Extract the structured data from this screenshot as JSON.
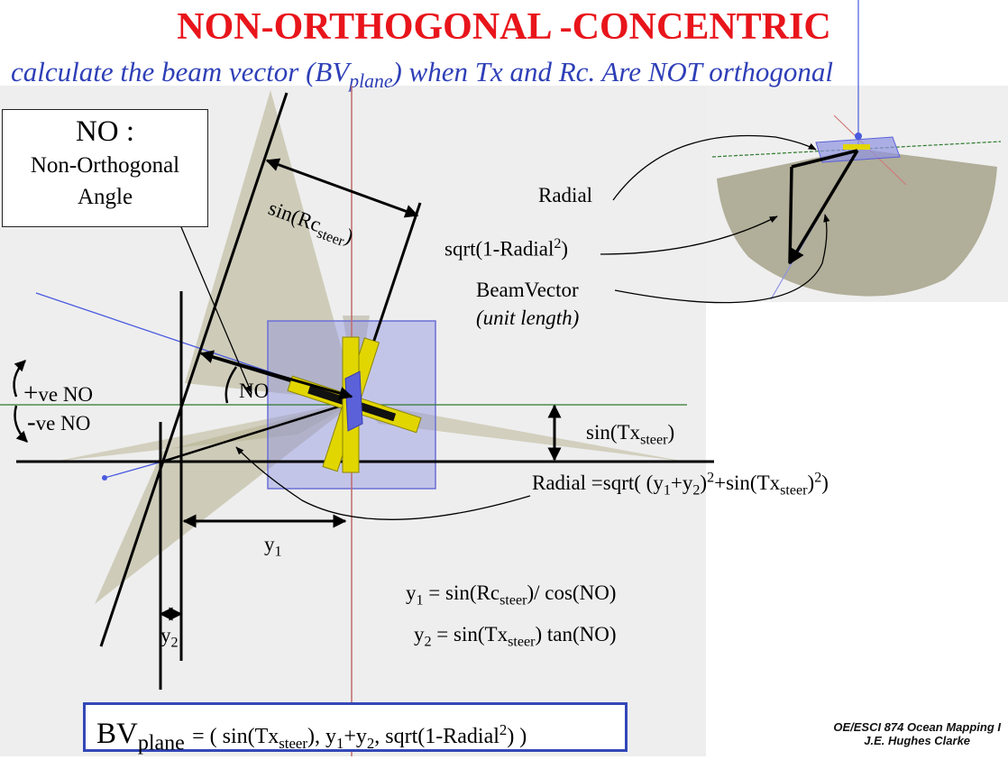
{
  "title": "NON-ORTHOGONAL -CONCENTRIC",
  "subtitle": {
    "pre": "calculate the beam vector (BV",
    "sub": "plane",
    "post": ") when Tx and Rc. Are NOT orthogonal"
  },
  "no_box": {
    "heading": "NO :",
    "line1": "Non-Orthogonal",
    "line2": "Angle"
  },
  "labels": {
    "sin_rc": {
      "pre": "sin(Rc",
      "sub": "steer",
      "post": ")"
    },
    "no_angle": "NO",
    "pos_no": {
      "sign": "+",
      "text": "ve NO"
    },
    "neg_no": {
      "sign": "-",
      "text": "ve NO"
    },
    "sin_tx": {
      "pre": "sin(Tx",
      "sub": "steer",
      "post": ")"
    },
    "y1": {
      "pre": "y",
      "sub": "1"
    },
    "y2": {
      "pre": "y",
      "sub": "2"
    },
    "radial": "Radial",
    "sqrt_radial": {
      "pre": "sqrt(1-Radial",
      "sup": "2",
      "post": ")"
    },
    "beam_vector": "BeamVector",
    "unit_length": "(unit length)"
  },
  "equations": {
    "radial_eq": "Radial =sqrt( (y1+y2)2+sin(Txsteer)2)",
    "y1_eq": "y1 = sin(Rcsteer)/ cos(NO)",
    "y2_eq": "y2 = sin(Txsteer) tan(NO)"
  },
  "bv_formula": {
    "lhs": "BV",
    "lhs_sub": "plane",
    "rest": "= ( sin(Txsteer), y1+y2, sqrt(1-Radial2) )"
  },
  "credit": {
    "line1": "OE/ESCI 874 Ocean Mapping I",
    "line2": "J.E. Hughes Clarke"
  },
  "colors": {
    "title": "#e8151b",
    "subtitle": "#2e3fb7",
    "beam_fan": "#b5b08e",
    "transducer_yellow": "#e2d600",
    "transducer_blue": "#6b6fd6",
    "green_line": "#2f7a2f",
    "vertical_red": "#c06a6a",
    "blue_line": "#4a5adf"
  }
}
